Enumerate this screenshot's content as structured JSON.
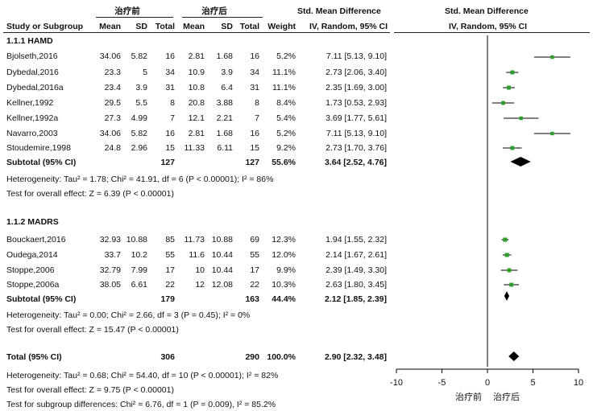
{
  "header": {
    "group1": "治疗前",
    "group2": "治疗后",
    "smd_left": "Std. Mean Difference",
    "smd_right": "Std. Mean Difference",
    "col_study": "Study or Subgroup",
    "col_mean1": "Mean",
    "col_sd1": "SD",
    "col_total1": "Total",
    "col_mean2": "Mean",
    "col_sd2": "SD",
    "col_total2": "Total",
    "col_weight": "Weight",
    "col_ci_left": "IV, Random, 95% CI",
    "col_ci_right": "IV, Random, 95% CI"
  },
  "subgroups": [
    {
      "title": "1.1.1 HAMD",
      "studies": [
        {
          "name": "Bjolseth,2016",
          "m1": "34.06",
          "sd1": "5.82",
          "n1": "16",
          "m2": "2.81",
          "sd2": "1.68",
          "n2": "16",
          "weight": "5.2%",
          "ci": "7.11 [5.13, 9.10]"
        },
        {
          "name": "Dybedal,2016",
          "m1": "23.3",
          "sd1": "5",
          "n1": "34",
          "m2": "10.9",
          "sd2": "3.9",
          "n2": "34",
          "weight": "11.1%",
          "ci": "2.73 [2.06, 3.40]"
        },
        {
          "name": "Dybedal,2016a",
          "m1": "23.4",
          "sd1": "3.9",
          "n1": "31",
          "m2": "10.8",
          "sd2": "6.4",
          "n2": "31",
          "weight": "11.1%",
          "ci": "2.35 [1.69, 3.00]"
        },
        {
          "name": "Kellner,1992",
          "m1": "29.5",
          "sd1": "5.5",
          "n1": "8",
          "m2": "20.8",
          "sd2": "3.88",
          "n2": "8",
          "weight": "8.4%",
          "ci": "1.73 [0.53, 2.93]"
        },
        {
          "name": "Kellner,1992a",
          "m1": "27.3",
          "sd1": "4.99",
          "n1": "7",
          "m2": "12.1",
          "sd2": "2.21",
          "n2": "7",
          "weight": "5.4%",
          "ci": "3.69 [1.77, 5.61]"
        },
        {
          "name": "Navarro,2003",
          "m1": "34.06",
          "sd1": "5.82",
          "n1": "16",
          "m2": "2.81",
          "sd2": "1.68",
          "n2": "16",
          "weight": "5.2%",
          "ci": "7.11 [5.13, 9.10]"
        },
        {
          "name": "Stoudemire,1998",
          "m1": "24.8",
          "sd1": "2.96",
          "n1": "15",
          "m2": "11.33",
          "sd2": "6.11",
          "n2": "15",
          "weight": "9.2%",
          "ci": "2.73 [1.70, 3.76]"
        }
      ],
      "subtotal": {
        "label": "Subtotal (95% CI)",
        "n1": "127",
        "n2": "127",
        "weight": "55.6%",
        "ci": "3.64 [2.52, 4.76]"
      },
      "heterogeneity": "Heterogeneity: Tau² = 1.78; Chi² = 41.91, df = 6 (P < 0.00001); I² = 86%",
      "overall": "Test for overall effect: Z = 6.39 (P < 0.00001)"
    },
    {
      "title": "1.1.2 MADRS",
      "studies": [
        {
          "name": "Bouckaert,2016",
          "m1": "32.93",
          "sd1": "10.88",
          "n1": "85",
          "m2": "11.73",
          "sd2": "10.88",
          "n2": "69",
          "weight": "12.3%",
          "ci": "1.94 [1.55, 2.32]"
        },
        {
          "name": "Oudega,2014",
          "m1": "33.7",
          "sd1": "10.2",
          "n1": "55",
          "m2": "11.6",
          "sd2": "10.44",
          "n2": "55",
          "weight": "12.0%",
          "ci": "2.14 [1.67, 2.61]"
        },
        {
          "name": "Stoppe,2006",
          "m1": "32.79",
          "sd1": "7.99",
          "n1": "17",
          "m2": "10",
          "sd2": "10.44",
          "n2": "17",
          "weight": "9.9%",
          "ci": "2.39 [1.49, 3.30]"
        },
        {
          "name": "Stoppe,2006a",
          "m1": "38.05",
          "sd1": "6.61",
          "n1": "22",
          "m2": "12",
          "sd2": "12.08",
          "n2": "22",
          "weight": "10.3%",
          "ci": "2.63 [1.80, 3.45]"
        }
      ],
      "subtotal": {
        "label": "Subtotal (95% CI)",
        "n1": "179",
        "n2": "163",
        "weight": "44.4%",
        "ci": "2.12 [1.85, 2.39]"
      },
      "heterogeneity": "Heterogeneity: Tau² = 0.00; Chi² = 2.66, df = 3 (P = 0.45); I² = 0%",
      "overall": "Test for overall effect: Z = 15.47 (P < 0.00001)"
    }
  ],
  "total": {
    "label": "Total (95% CI)",
    "n1": "306",
    "n2": "290",
    "weight": "100.0%",
    "ci": "2.90 [2.32, 3.48]"
  },
  "total_heterogeneity": "Heterogeneity: Tau² = 0.68; Chi² = 54.40, df = 10 (P < 0.00001); I² = 82%",
  "total_overall": "Test for overall effect: Z = 9.75 (P < 0.00001)",
  "subgroup_diff": "Test for subgroup differences: Chi² = 6.76, df = 1 (P = 0.009), I² = 85.2%",
  "axis": {
    "favours_left": "治疗前",
    "favours_right": "治疗后"
  },
  "colors": {
    "study_marker": "#2e9e2e",
    "diamond": "#000000",
    "line": "#000000"
  },
  "chart_data": {
    "type": "forest",
    "x_range": [
      -10,
      10
    ],
    "x_ticks": [
      -10,
      -5,
      0,
      5,
      10
    ],
    "x_tick_labels": [
      "-10",
      "-5",
      "0",
      "5",
      "10"
    ],
    "reference_line": 0,
    "studies": [
      {
        "name": "Bjolseth,2016",
        "est": 7.11,
        "lo": 5.13,
        "hi": 9.1,
        "weight": 5.2,
        "subgroup": "1.1.1 HAMD"
      },
      {
        "name": "Dybedal,2016",
        "est": 2.73,
        "lo": 2.06,
        "hi": 3.4,
        "weight": 11.1,
        "subgroup": "1.1.1 HAMD"
      },
      {
        "name": "Dybedal,2016a",
        "est": 2.35,
        "lo": 1.69,
        "hi": 3.0,
        "weight": 11.1,
        "subgroup": "1.1.1 HAMD"
      },
      {
        "name": "Kellner,1992",
        "est": 1.73,
        "lo": 0.53,
        "hi": 2.93,
        "weight": 8.4,
        "subgroup": "1.1.1 HAMD"
      },
      {
        "name": "Kellner,1992a",
        "est": 3.69,
        "lo": 1.77,
        "hi": 5.61,
        "weight": 5.4,
        "subgroup": "1.1.1 HAMD"
      },
      {
        "name": "Navarro,2003",
        "est": 7.11,
        "lo": 5.13,
        "hi": 9.1,
        "weight": 5.2,
        "subgroup": "1.1.1 HAMD"
      },
      {
        "name": "Stoudemire,1998",
        "est": 2.73,
        "lo": 1.7,
        "hi": 3.76,
        "weight": 9.2,
        "subgroup": "1.1.1 HAMD"
      },
      {
        "name": "Bouckaert,2016",
        "est": 1.94,
        "lo": 1.55,
        "hi": 2.32,
        "weight": 12.3,
        "subgroup": "1.1.2 MADRS"
      },
      {
        "name": "Oudega,2014",
        "est": 2.14,
        "lo": 1.67,
        "hi": 2.61,
        "weight": 12.0,
        "subgroup": "1.1.2 MADRS"
      },
      {
        "name": "Stoppe,2006",
        "est": 2.39,
        "lo": 1.49,
        "hi": 3.3,
        "weight": 9.9,
        "subgroup": "1.1.2 MADRS"
      },
      {
        "name": "Stoppe,2006a",
        "est": 2.63,
        "lo": 1.8,
        "hi": 3.45,
        "weight": 10.3,
        "subgroup": "1.1.2 MADRS"
      }
    ],
    "summaries": [
      {
        "name": "Subtotal 1.1.1 HAMD",
        "est": 3.64,
        "lo": 2.52,
        "hi": 4.76
      },
      {
        "name": "Subtotal 1.1.2 MADRS",
        "est": 2.12,
        "lo": 1.85,
        "hi": 2.39
      },
      {
        "name": "Total",
        "est": 2.9,
        "lo": 2.32,
        "hi": 3.48
      }
    ]
  }
}
